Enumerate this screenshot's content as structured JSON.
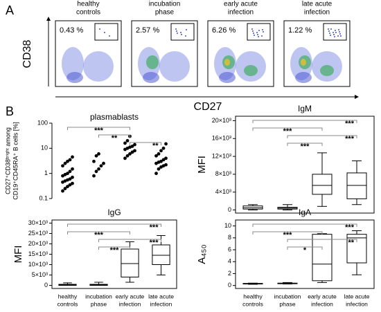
{
  "panels": [
    "A",
    "B"
  ],
  "flow": {
    "x_label": "CD27",
    "y_label": "CD38",
    "plots": [
      {
        "title": [
          "healthy",
          "controls"
        ],
        "gate_label": "0.43 %"
      },
      {
        "title": [
          "incubation",
          "phase"
        ],
        "gate_label": "2.57 %"
      },
      {
        "title": [
          "early acute",
          "infection"
        ],
        "gate_label": "6.26 %"
      },
      {
        "title": [
          "late acute",
          "infection"
        ],
        "gate_label": "1.22 %"
      }
    ]
  },
  "chart_data": [
    {
      "type": "scatter",
      "title": "plasmablasts",
      "y_label": [
        "CD27⁺CD38ᵇʳⁱᵍʰᵗ among",
        "CD19⁺CD45RA⁺ B cells [%]"
      ],
      "log_scale": true,
      "color": "#000000",
      "ylim": [
        0.1,
        100
      ],
      "yticks": [
        0.1,
        1,
        10,
        100
      ],
      "values": [
        [
          0.2,
          0.25,
          0.3,
          0.35,
          0.4,
          0.45,
          0.5,
          0.55,
          0.6,
          0.7,
          0.8,
          0.9,
          1.0,
          1.2,
          1.5,
          2,
          2.5,
          3,
          3.5,
          4.5
        ],
        [
          0.8,
          1.2,
          1.5,
          2,
          2.5,
          3,
          5,
          6
        ],
        [
          4,
          5,
          6,
          7,
          8,
          9,
          10,
          11,
          12,
          14,
          16,
          20,
          30
        ],
        [
          1,
          1.5,
          1.8,
          2,
          2.2,
          2.5,
          2.8,
          3,
          3.5,
          4,
          5,
          6,
          8,
          10,
          15
        ]
      ],
      "significance": [
        {
          "from": 0,
          "to": 2,
          "label": "***"
        },
        {
          "from": 1,
          "to": 2,
          "label": "**"
        },
        {
          "from": 2,
          "to": 3,
          "label": "**"
        }
      ]
    },
    {
      "type": "box",
      "title": "IgM",
      "y_label": "MFI",
      "color": "#000000",
      "ylim": [
        -700,
        21000
      ],
      "yticks": [
        0,
        {
          "value": 4000,
          "label": "4×10³"
        },
        {
          "value": 8000,
          "label": "8×10³"
        },
        {
          "value": 12000,
          "label": "12×10³"
        },
        {
          "value": 16000,
          "label": "16×10³"
        },
        {
          "value": 20000,
          "label": "20×10³"
        }
      ],
      "boxes": [
        {
          "min": 0,
          "q1": 200,
          "median": 500,
          "q3": 900,
          "max": 1200
        },
        {
          "min": 0,
          "q1": 200,
          "median": 400,
          "q3": 600,
          "max": 1200
        },
        {
          "min": 800,
          "q1": 3500,
          "median": 5500,
          "q3": 8000,
          "max": 12800
        },
        {
          "min": 1200,
          "q1": 2500,
          "median": 5500,
          "q3": 8300,
          "max": 11000
        }
      ],
      "significance": [
        {
          "from": 0,
          "to": 3,
          "label": "***"
        },
        {
          "from": 0,
          "to": 2,
          "label": "***"
        },
        {
          "from": 1,
          "to": 3,
          "label": "***"
        },
        {
          "from": 1,
          "to": 2,
          "label": "***"
        }
      ]
    },
    {
      "type": "box",
      "title": "IgG",
      "y_label": "MFI",
      "color": "#000000",
      "categories": [
        [
          "healthy",
          "controls"
        ],
        [
          "incubation",
          "phase"
        ],
        [
          "early acute",
          "infection"
        ],
        [
          "late acute",
          "infection"
        ]
      ],
      "ylim": [
        -1500,
        31500
      ],
      "yticks": [
        0,
        {
          "value": 5000,
          "label": "5×10³"
        },
        {
          "value": 10000,
          "label": "10×10³"
        },
        {
          "value": 15000,
          "label": "15×10³"
        },
        {
          "value": 20000,
          "label": "20×10³"
        },
        {
          "value": 25000,
          "label": "25×10³"
        },
        {
          "value": 30000,
          "label": "30×10³"
        }
      ],
      "boxes": [
        {
          "min": 0,
          "q1": 0,
          "median": 200,
          "q3": 500,
          "max": 1200
        },
        {
          "min": 0,
          "q1": 0,
          "median": 200,
          "q3": 500,
          "max": 1500
        },
        {
          "min": 1500,
          "q1": 4000,
          "median": 10500,
          "q3": 17500,
          "max": 21000
        },
        {
          "min": 5000,
          "q1": 10000,
          "median": 14500,
          "q3": 19500,
          "max": 24000
        }
      ],
      "significance": [
        {
          "from": 0,
          "to": 3,
          "label": "***"
        },
        {
          "from": 0,
          "to": 2,
          "label": "***"
        },
        {
          "from": 1,
          "to": 3,
          "label": "***"
        },
        {
          "from": 1,
          "to": 2,
          "label": "***"
        }
      ]
    },
    {
      "type": "box",
      "title": "IgA",
      "y_label": "A₄₅₀",
      "color": "#000000",
      "categories": [
        [
          "healthy",
          "controls"
        ],
        [
          "incubation",
          "phase"
        ],
        [
          "early acute",
          "infection"
        ],
        [
          "late acute",
          "infection"
        ]
      ],
      "ylim": [
        -0.5,
        11
      ],
      "yticks": [
        0,
        2,
        4,
        6,
        8,
        10
      ],
      "boxes": [
        {
          "min": 0.2,
          "q1": 0.25,
          "median": 0.3,
          "q3": 0.35,
          "max": 0.4
        },
        {
          "min": 0.25,
          "q1": 0.3,
          "median": 0.35,
          "q3": 0.4,
          "max": 0.5
        },
        {
          "min": 0.5,
          "q1": 0.8,
          "median": 3.6,
          "q3": 8.6,
          "max": 8.7
        },
        {
          "min": 1.8,
          "q1": 3.8,
          "median": 8,
          "q3": 8.6,
          "max": 9.2
        }
      ],
      "significance": [
        {
          "from": 0,
          "to": 3,
          "label": "***"
        },
        {
          "from": 0,
          "to": 2,
          "label": "***"
        },
        {
          "from": 1,
          "to": 3,
          "label": "**"
        },
        {
          "from": 1,
          "to": 2,
          "label": "*"
        }
      ]
    }
  ]
}
